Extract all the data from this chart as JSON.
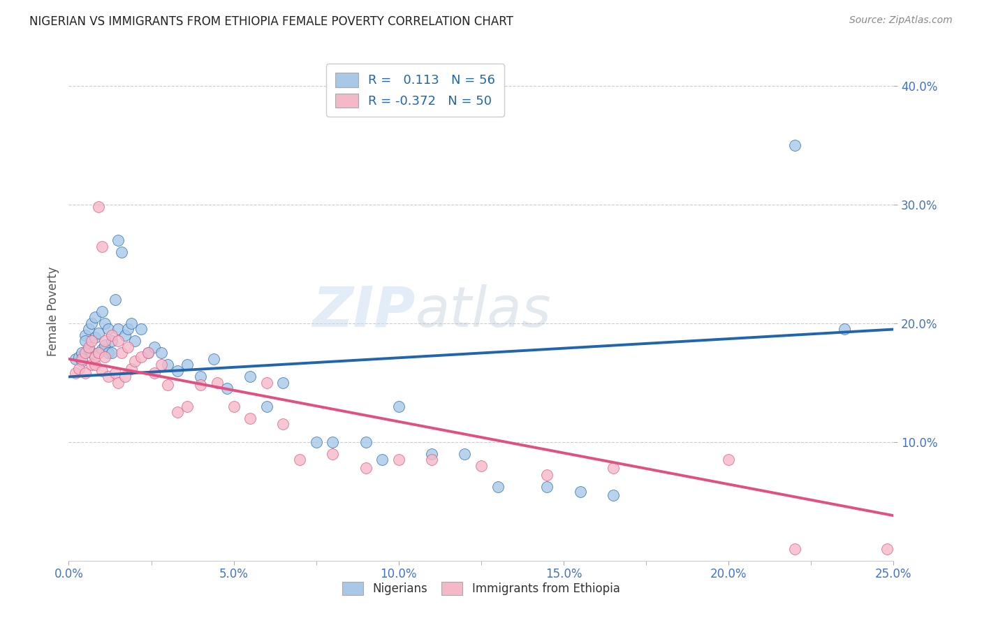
{
  "title": "NIGERIAN VS IMMIGRANTS FROM ETHIOPIA FEMALE POVERTY CORRELATION CHART",
  "source": "Source: ZipAtlas.com",
  "ylabel": "Female Poverty",
  "xlim": [
    0.0,
    0.25
  ],
  "ylim": [
    0.0,
    0.42
  ],
  "xtick_labels": [
    "0.0%",
    "",
    "5.0%",
    "",
    "10.0%",
    "",
    "15.0%",
    "",
    "20.0%",
    "",
    "25.0%"
  ],
  "xtick_vals": [
    0.0,
    0.025,
    0.05,
    0.075,
    0.1,
    0.125,
    0.15,
    0.175,
    0.2,
    0.225,
    0.25
  ],
  "xtick_display_labels": [
    "0.0%",
    "5.0%",
    "10.0%",
    "15.0%",
    "20.0%",
    "25.0%"
  ],
  "xtick_display_vals": [
    0.0,
    0.05,
    0.1,
    0.15,
    0.2,
    0.25
  ],
  "ytick_labels": [
    "10.0%",
    "20.0%",
    "30.0%",
    "40.0%"
  ],
  "ytick_vals": [
    0.1,
    0.2,
    0.3,
    0.4
  ],
  "blue_color": "#a8c8e8",
  "blue_line": "#2166ac",
  "pink_color": "#f4b8c8",
  "pink_line": "#e05080",
  "legend_labels": [
    "Nigerians",
    "Immigrants from Ethiopia"
  ],
  "R_blue": 0.113,
  "N_blue": 56,
  "R_pink": -0.372,
  "N_pink": 50,
  "watermark_zip": "ZIP",
  "watermark_atlas": "atlas",
  "blue_line_x": [
    0.0,
    0.25
  ],
  "blue_line_y": [
    0.155,
    0.195
  ],
  "pink_line_x": [
    0.0,
    0.25
  ],
  "pink_line_y": [
    0.17,
    0.038
  ],
  "blue_scatter_x": [
    0.002,
    0.003,
    0.004,
    0.004,
    0.005,
    0.005,
    0.006,
    0.006,
    0.007,
    0.007,
    0.008,
    0.008,
    0.009,
    0.009,
    0.01,
    0.01,
    0.011,
    0.011,
    0.012,
    0.012,
    0.013,
    0.013,
    0.014,
    0.015,
    0.015,
    0.016,
    0.017,
    0.018,
    0.019,
    0.02,
    0.022,
    0.024,
    0.026,
    0.028,
    0.03,
    0.033,
    0.036,
    0.04,
    0.044,
    0.048,
    0.055,
    0.06,
    0.065,
    0.075,
    0.08,
    0.09,
    0.095,
    0.1,
    0.11,
    0.12,
    0.13,
    0.145,
    0.155,
    0.165,
    0.22,
    0.235
  ],
  "blue_scatter_y": [
    0.17,
    0.172,
    0.175,
    0.168,
    0.19,
    0.185,
    0.195,
    0.178,
    0.2,
    0.175,
    0.205,
    0.188,
    0.192,
    0.175,
    0.21,
    0.178,
    0.2,
    0.182,
    0.195,
    0.175,
    0.185,
    0.175,
    0.22,
    0.27,
    0.195,
    0.26,
    0.19,
    0.195,
    0.2,
    0.185,
    0.195,
    0.175,
    0.18,
    0.175,
    0.165,
    0.16,
    0.165,
    0.155,
    0.17,
    0.145,
    0.155,
    0.13,
    0.15,
    0.1,
    0.1,
    0.1,
    0.085,
    0.13,
    0.09,
    0.09,
    0.062,
    0.062,
    0.058,
    0.055,
    0.35,
    0.195
  ],
  "pink_scatter_x": [
    0.002,
    0.003,
    0.004,
    0.005,
    0.005,
    0.006,
    0.007,
    0.007,
    0.008,
    0.008,
    0.009,
    0.009,
    0.01,
    0.01,
    0.011,
    0.011,
    0.012,
    0.013,
    0.014,
    0.015,
    0.015,
    0.016,
    0.017,
    0.018,
    0.019,
    0.02,
    0.022,
    0.024,
    0.026,
    0.028,
    0.03,
    0.033,
    0.036,
    0.04,
    0.045,
    0.05,
    0.055,
    0.06,
    0.065,
    0.07,
    0.08,
    0.09,
    0.1,
    0.11,
    0.125,
    0.145,
    0.165,
    0.2,
    0.22,
    0.248
  ],
  "pink_scatter_y": [
    0.158,
    0.162,
    0.17,
    0.175,
    0.158,
    0.18,
    0.185,
    0.165,
    0.165,
    0.172,
    0.298,
    0.175,
    0.265,
    0.16,
    0.185,
    0.172,
    0.155,
    0.19,
    0.158,
    0.185,
    0.15,
    0.175,
    0.155,
    0.18,
    0.162,
    0.168,
    0.172,
    0.175,
    0.158,
    0.165,
    0.148,
    0.125,
    0.13,
    0.148,
    0.15,
    0.13,
    0.12,
    0.15,
    0.115,
    0.085,
    0.09,
    0.078,
    0.085,
    0.085,
    0.08,
    0.072,
    0.078,
    0.085,
    0.01,
    0.01
  ]
}
